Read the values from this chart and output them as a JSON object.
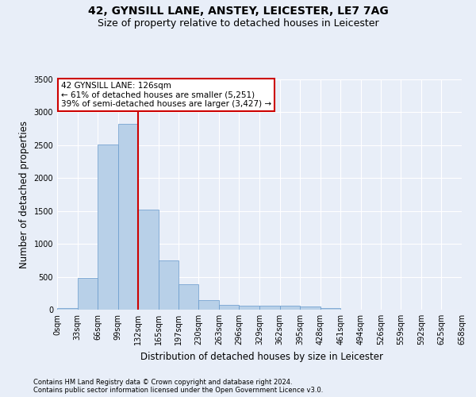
{
  "title": "42, GYNSILL LANE, ANSTEY, LEICESTER, LE7 7AG",
  "subtitle": "Size of property relative to detached houses in Leicester",
  "xlabel": "Distribution of detached houses by size in Leicester",
  "ylabel": "Number of detached properties",
  "footer_line1": "Contains HM Land Registry data © Crown copyright and database right 2024.",
  "footer_line2": "Contains public sector information licensed under the Open Government Licence v3.0.",
  "bin_edges": [
    0,
    33,
    66,
    99,
    132,
    165,
    197,
    230,
    263,
    296,
    329,
    362,
    395,
    428,
    461,
    494,
    526,
    559,
    592,
    625,
    658
  ],
  "bin_counts": [
    20,
    480,
    2510,
    2820,
    1520,
    750,
    390,
    145,
    75,
    55,
    55,
    55,
    50,
    25,
    0,
    0,
    0,
    0,
    0,
    0
  ],
  "property_size": 126,
  "property_line_x": 132,
  "annotation_line1": "42 GYNSILL LANE: 126sqm",
  "annotation_line2": "← 61% of detached houses are smaller (5,251)",
  "annotation_line3": "39% of semi-detached houses are larger (3,427) →",
  "bar_color": "#b8d0e8",
  "bar_edge_color": "#6699cc",
  "line_color": "#cc0000",
  "annotation_box_edgecolor": "#cc0000",
  "background_color": "#e8eef8",
  "plot_bg_color": "#e8eef8",
  "ylim": [
    0,
    3500
  ],
  "yticks": [
    0,
    500,
    1000,
    1500,
    2000,
    2500,
    3000,
    3500
  ],
  "title_fontsize": 10,
  "subtitle_fontsize": 9,
  "axis_label_fontsize": 8.5,
  "tick_fontsize": 7,
  "footer_fontsize": 6,
  "annotation_fontsize": 7.5
}
